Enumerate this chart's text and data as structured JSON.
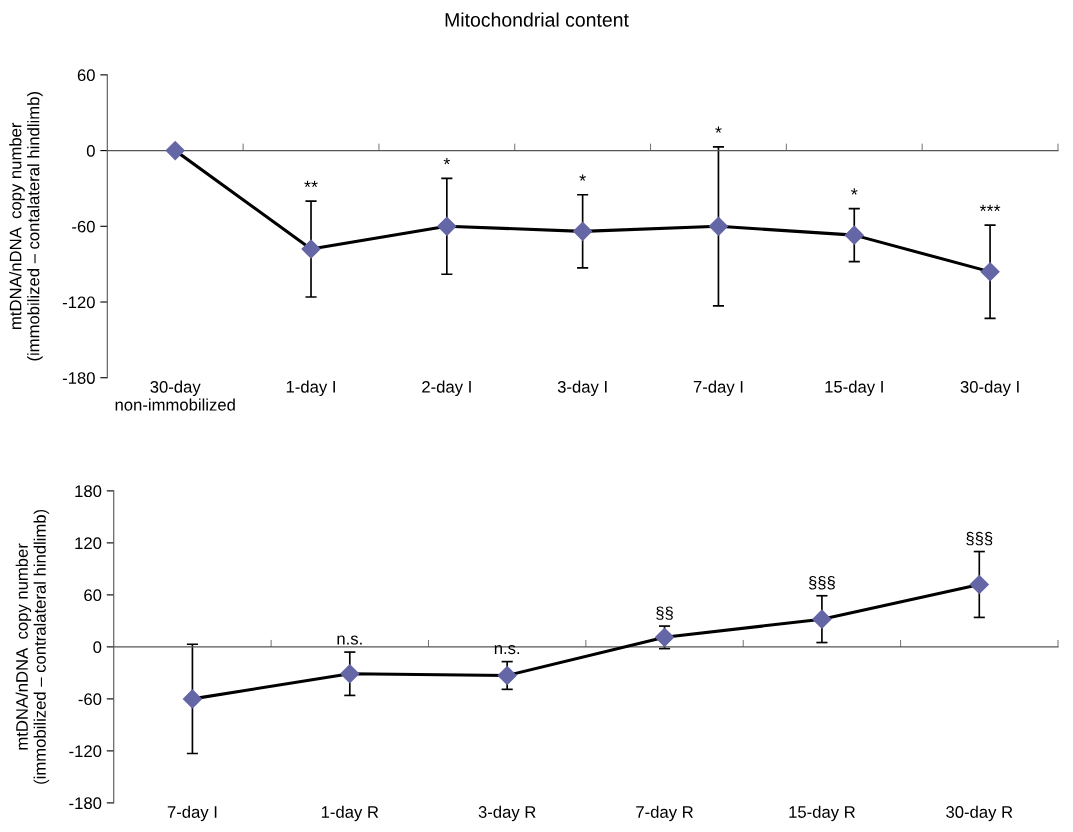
{
  "chart_data": [
    {
      "type": "line",
      "title": "Mitochondrial content",
      "ylabel": "mtDNA/nDNA  copy number\n(immobilized – contalateral hindlimb)",
      "categories": [
        "30-day\nnon-immobilized",
        "1-day I",
        "2-day I",
        "3-day I",
        "7-day I",
        "15-day I",
        "30-day I"
      ],
      "series": [
        {
          "color": "#6466a6",
          "values": [
            0,
            -78,
            -60,
            -64,
            -60,
            -67,
            -96
          ],
          "errors": [
            null,
            38,
            38,
            29,
            63,
            21,
            37
          ]
        }
      ],
      "ylim": [
        -180,
        60
      ],
      "yticks": [
        60,
        0,
        -60,
        -120,
        -180
      ],
      "legend": false,
      "marker": "diamond",
      "line_style": "solid",
      "annotations": [
        {
          "text": "**",
          "x": "1-day I",
          "y": -40
        },
        {
          "text": "*",
          "x": "2-day I",
          "y": -22
        },
        {
          "text": "*",
          "x": "3-day I",
          "y": -35
        },
        {
          "text": "*",
          "x": "7-day I",
          "y": 3
        },
        {
          "text": "*",
          "x": "15-day I",
          "y": -46
        },
        {
          "text": "***",
          "x": "30-day I",
          "y": -59
        }
      ]
    },
    {
      "type": "line",
      "ylabel": "mtDNA/nDNA  copy number\n(immobilized – contralateral hindlimb)",
      "categories": [
        "7-day I",
        "1-day R",
        "3-day R",
        "7-day R",
        "15-day R",
        "30-day R"
      ],
      "series": [
        {
          "color": "#6466a6",
          "values": [
            -60,
            -31,
            -33,
            11,
            32,
            72
          ],
          "errors": [
            63,
            25,
            16,
            13,
            27,
            38
          ]
        }
      ],
      "ylim": [
        -180,
        180
      ],
      "yticks": [
        180,
        120,
        60,
        0,
        -60,
        -120,
        -180
      ],
      "legend": false,
      "marker": "diamond",
      "line_style": "solid",
      "annotations": [
        {
          "text": "n.s.",
          "x": "1-day R",
          "y": -6
        },
        {
          "text": "n.s.",
          "x": "3-day R",
          "y": -17
        },
        {
          "text": "§§",
          "x": "7-day R",
          "y": 24
        },
        {
          "text": "§§§",
          "x": "15-day R",
          "y": 59
        },
        {
          "text": "§§§",
          "x": "30-day R",
          "y": 110
        }
      ]
    }
  ]
}
